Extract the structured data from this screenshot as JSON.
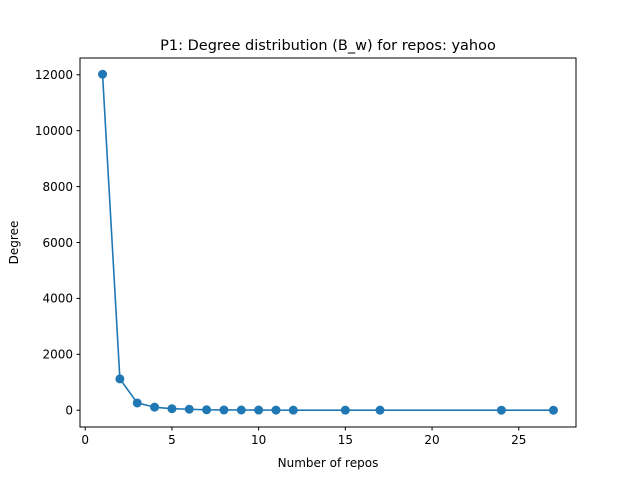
{
  "chart_data": {
    "type": "line",
    "title": "P1: Degree distribution (B_w) for repos: yahoo",
    "xlabel": "Number of repos",
    "ylabel": "Degree",
    "xlim": [
      -0.3,
      28.3
    ],
    "ylim": [
      -600,
      12600
    ],
    "xticks": [
      0,
      5,
      10,
      15,
      20,
      25
    ],
    "yticks": [
      0,
      2000,
      4000,
      6000,
      8000,
      10000,
      12000
    ],
    "grid": false,
    "marker": "circle",
    "color": "#1f77b4",
    "series": [
      {
        "x": [
          1,
          2,
          3,
          4,
          5,
          6,
          7,
          8,
          9,
          10,
          11,
          12,
          15,
          17,
          24,
          27
        ],
        "y": [
          12020,
          1120,
          260,
          110,
          55,
          35,
          15,
          10,
          8,
          6,
          4,
          3,
          2,
          2,
          1,
          1
        ]
      }
    ]
  }
}
